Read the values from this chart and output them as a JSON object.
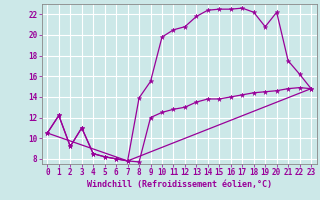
{
  "xlabel": "Windchill (Refroidissement éolien,°C)",
  "background_color": "#cce8e8",
  "grid_color": "#aacccc",
  "line_color": "#990099",
  "xlim": [
    -0.5,
    23.5
  ],
  "ylim": [
    7.5,
    23.0
  ],
  "xticks": [
    0,
    1,
    2,
    3,
    4,
    5,
    6,
    7,
    8,
    9,
    10,
    11,
    12,
    13,
    14,
    15,
    16,
    17,
    18,
    19,
    20,
    21,
    22,
    23
  ],
  "yticks": [
    8,
    10,
    12,
    14,
    16,
    18,
    20,
    22
  ],
  "line1_x": [
    0,
    1,
    2,
    3,
    4,
    5,
    6,
    7,
    8,
    9,
    10,
    11,
    12,
    13,
    14,
    15,
    16,
    17,
    18,
    19,
    20,
    21,
    22,
    23
  ],
  "line1_y": [
    10.5,
    12.2,
    9.2,
    11.0,
    8.5,
    8.2,
    8.0,
    7.8,
    13.9,
    15.5,
    19.8,
    20.5,
    20.8,
    21.8,
    22.4,
    22.5,
    22.5,
    22.6,
    22.2,
    20.8,
    22.2,
    17.5,
    16.2,
    14.8
  ],
  "line2_x": [
    0,
    1,
    2,
    3,
    4,
    5,
    6,
    7,
    8,
    9,
    10,
    11,
    12,
    13,
    14,
    15,
    16,
    17,
    18,
    19,
    20,
    21,
    22,
    23
  ],
  "line2_y": [
    10.5,
    12.2,
    9.2,
    11.0,
    8.5,
    8.2,
    8.0,
    7.8,
    7.7,
    12.0,
    12.5,
    12.8,
    13.0,
    13.5,
    13.8,
    13.8,
    14.0,
    14.2,
    14.4,
    14.5,
    14.6,
    14.8,
    14.9,
    14.8
  ],
  "line3_x": [
    0,
    7,
    23
  ],
  "line3_y": [
    10.5,
    7.8,
    14.8
  ]
}
